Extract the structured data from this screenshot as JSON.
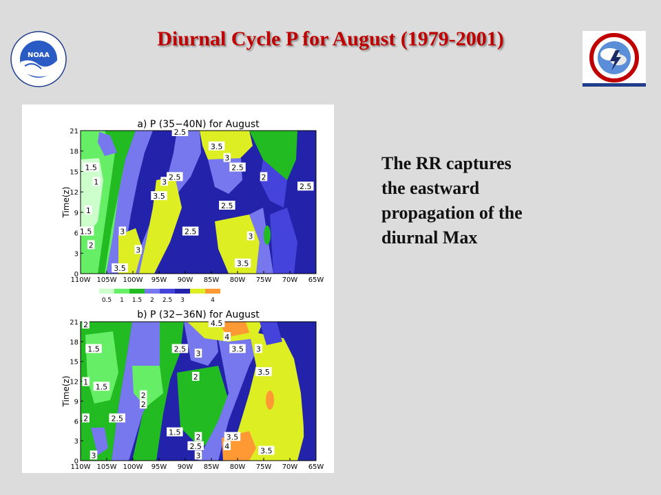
{
  "slide": {
    "title": "Diurnal Cycle P for August (1979-2001)",
    "caption_lines": [
      "The RR captures",
      "the eastward",
      "propagation of the",
      "diurnal Max"
    ]
  },
  "logos": {
    "left": {
      "icon": "noaa-logo",
      "text": "NOAA"
    },
    "right": {
      "icon": "national-weather-service-logo",
      "text": "NATIONAL WEATHER SERVICE"
    }
  },
  "colors": {
    "title": "#c00000",
    "background": "#dcdcdc",
    "palette": [
      "#ccffcc",
      "#66ee66",
      "#22bb22",
      "#7777ee",
      "#4444dd",
      "#2222aa",
      "#ddee22",
      "#ff9933"
    ]
  },
  "chart_data": [
    {
      "type": "heatmap",
      "panel": "a",
      "title": "a)  P  (35−40N)  for  August",
      "ylabel": "Time(z)",
      "x_ticks": [
        "110W",
        "105W",
        "100W",
        "95W",
        "90W",
        "85W",
        "80W",
        "75W",
        "70W",
        "65W"
      ],
      "y_ticks": [
        "0",
        "3",
        "6",
        "9",
        "12",
        "15",
        "18",
        "21"
      ],
      "xlim": [
        -110,
        -65
      ],
      "ylim": [
        0,
        21
      ],
      "contour_labels": [
        {
          "text": "2.5",
          "lon": -91,
          "time": 20.8
        },
        {
          "text": "3.5",
          "lon": -84,
          "time": 18.7
        },
        {
          "text": "3",
          "lon": -82,
          "time": 17
        },
        {
          "text": "2.5",
          "lon": -80,
          "time": 15.6
        },
        {
          "text": "2",
          "lon": -75,
          "time": 14.2
        },
        {
          "text": "2.5",
          "lon": -67,
          "time": 12.8
        },
        {
          "text": "1.5",
          "lon": -108,
          "time": 15.6
        },
        {
          "text": "1",
          "lon": -107,
          "time": 13.5
        },
        {
          "text": "2.5",
          "lon": -92,
          "time": 14.2
        },
        {
          "text": "3",
          "lon": -94,
          "time": 13.5
        },
        {
          "text": "3.5",
          "lon": -95,
          "time": 11.4
        },
        {
          "text": "2.5",
          "lon": -82,
          "time": 10
        },
        {
          "text": "1",
          "lon": -108.5,
          "time": 9.3
        },
        {
          "text": "1.5",
          "lon": -109,
          "time": 6.2
        },
        {
          "text": "3",
          "lon": -102,
          "time": 6.2
        },
        {
          "text": "2.5",
          "lon": -89,
          "time": 6.2
        },
        {
          "text": "2",
          "lon": -108,
          "time": 4.2
        },
        {
          "text": "3",
          "lon": -99,
          "time": 3.5
        },
        {
          "text": "3",
          "lon": -77.5,
          "time": 5.5
        },
        {
          "text": "3.5",
          "lon": -102.5,
          "time": 0.8
        },
        {
          "text": "3.5",
          "lon": -79,
          "time": 1.5
        }
      ]
    },
    {
      "type": "heatmap",
      "panel": "b",
      "title": "b)  P  (32−36N)  for  August",
      "ylabel": "Time(z)",
      "x_ticks": [
        "110W",
        "105W",
        "100W",
        "95W",
        "90W",
        "85W",
        "80W",
        "75W",
        "70W",
        "65W"
      ],
      "y_ticks": [
        "0",
        "3",
        "6",
        "9",
        "12",
        "15",
        "18",
        "21"
      ],
      "xlim": [
        -110,
        -65
      ],
      "ylim": [
        0,
        21
      ],
      "contour_labels": [
        {
          "text": "2",
          "lon": -109,
          "time": 20.6
        },
        {
          "text": "4.5",
          "lon": -84,
          "time": 20.8
        },
        {
          "text": "4",
          "lon": -82,
          "time": 18.7
        },
        {
          "text": "1.5",
          "lon": -107.5,
          "time": 16.9
        },
        {
          "text": "2.5",
          "lon": -91,
          "time": 16.9
        },
        {
          "text": "3",
          "lon": -87.5,
          "time": 16.2
        },
        {
          "text": "3.5",
          "lon": -80,
          "time": 16.9
        },
        {
          "text": "3",
          "lon": -76,
          "time": 16.9
        },
        {
          "text": "3.5",
          "lon": -75,
          "time": 13.4
        },
        {
          "text": "2",
          "lon": -88,
          "time": 12.7
        },
        {
          "text": "1",
          "lon": -109,
          "time": 11.9
        },
        {
          "text": "1.5",
          "lon": -106,
          "time": 11.2
        },
        {
          "text": "2",
          "lon": -98,
          "time": 9.9
        },
        {
          "text": "2",
          "lon": -98,
          "time": 8.5
        },
        {
          "text": "2",
          "lon": -109,
          "time": 6.4
        },
        {
          "text": "2.5",
          "lon": -103,
          "time": 6.4
        },
        {
          "text": "1.5",
          "lon": -92,
          "time": 4.3
        },
        {
          "text": "2",
          "lon": -87.5,
          "time": 3.6
        },
        {
          "text": "2.5",
          "lon": -88,
          "time": 2.2
        },
        {
          "text": "3.5",
          "lon": -81,
          "time": 3.6
        },
        {
          "text": "4",
          "lon": -82,
          "time": 2.2
        },
        {
          "text": "3.5",
          "lon": -74.5,
          "time": 1.5
        },
        {
          "text": "3",
          "lon": -87.5,
          "time": 0.8
        },
        {
          "text": "3",
          "lon": -107.5,
          "time": 0.8
        }
      ]
    }
  ],
  "colorbar": {
    "labels": [
      "0.5",
      "1",
      "1.5",
      "2",
      "2.5",
      "3",
      "4"
    ]
  }
}
